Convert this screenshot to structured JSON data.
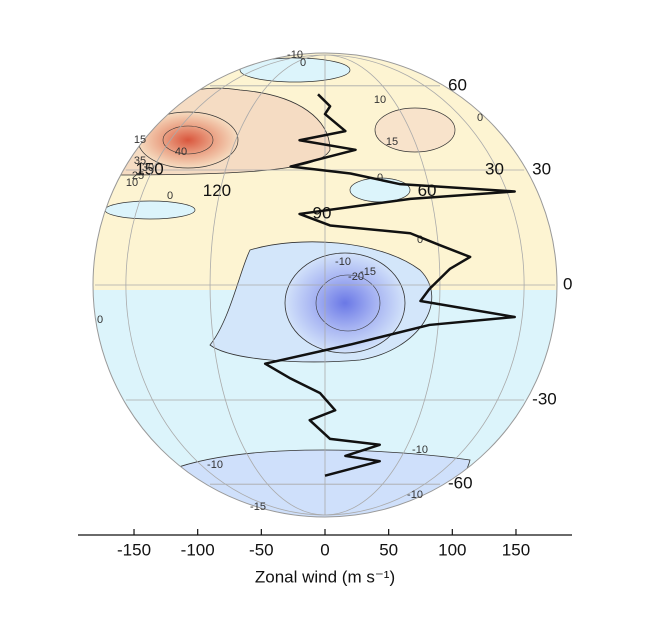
{
  "chart_data": {
    "type": "line",
    "xlabel": "Zonal wind (m s⁻¹)",
    "xlim": [
      -194,
      194
    ],
    "xticks": [
      -150,
      -100,
      -50,
      0,
      50,
      100,
      150
    ],
    "latitude_ticks": [
      60,
      30,
      0,
      -30,
      -60
    ],
    "longitude_ticks": [
      150,
      120,
      90,
      60,
      30
    ],
    "color": "#111111",
    "latitudes": [
      56,
      51,
      48,
      42,
      39,
      36,
      31,
      29,
      26,
      24,
      22,
      18,
      15,
      13,
      10,
      7,
      4,
      -1,
      -4,
      -8,
      -10,
      -15,
      -20,
      -24,
      -28,
      -33,
      -36,
      -42,
      -44,
      -48,
      -50,
      -56
    ],
    "values": [
      -5.5,
      4,
      0,
      16,
      -20,
      24,
      -27,
      20,
      59,
      149,
      67,
      -20,
      4,
      67,
      90,
      114,
      98,
      82,
      75,
      149,
      82,
      20,
      -47,
      -27,
      -4,
      8,
      -12,
      4,
      43,
      16,
      43,
      0
    ],
    "contour_labels": [
      -10,
      0,
      10,
      15,
      0,
      15,
      40,
      35,
      30,
      25,
      10,
      0,
      0,
      0,
      -10,
      -15,
      -20,
      0,
      -10,
      -10,
      -10,
      -15
    ]
  }
}
